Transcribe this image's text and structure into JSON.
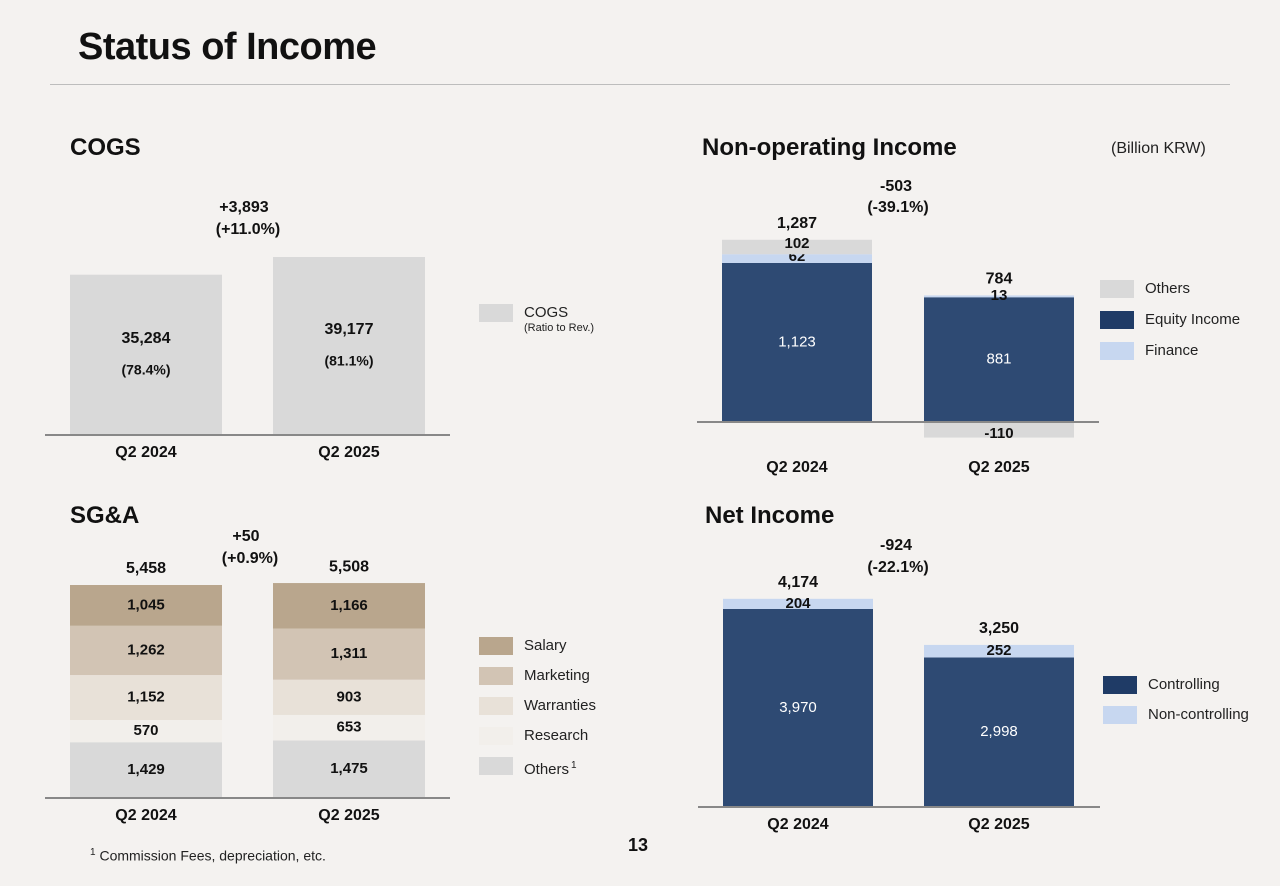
{
  "page": {
    "title": "Status of Income",
    "unit_note": "(Billion KRW)",
    "footnote_marker": "1",
    "footnote": "Commission Fees, depreciation, etc.",
    "page_number": "13"
  },
  "colors": {
    "background": "#f4f2f0",
    "cogs": "#d9d9d9",
    "navy": "#2e4a73",
    "legend_navy": "#1f3b66",
    "finance": "#c7d7f0",
    "others_gray": "#d9d9d9",
    "salary": "#b9a68d",
    "marketing": "#d2c4b4",
    "warranties": "#e8e1d8",
    "research": "#f2efeb",
    "sga_others": "#d9d9d9"
  },
  "chart_data": [
    {
      "id": "cogs",
      "type": "bar",
      "title": "COGS",
      "categories": [
        "Q2 2024",
        "Q2 2025"
      ],
      "series": [
        {
          "name": "COGS",
          "sublabel": "(Ratio to Rev.)",
          "values": [
            35284,
            39177
          ],
          "ratios": [
            "(78.4%)",
            "(81.1%)"
          ],
          "labels": [
            "35,284",
            "39,177"
          ]
        }
      ],
      "change": {
        "value": "+3,893",
        "pct": "(+11.0%)"
      },
      "ylim": [
        0,
        45000
      ]
    },
    {
      "id": "nonop",
      "type": "bar",
      "stacked": true,
      "title": "Non-operating Income",
      "categories": [
        "Q2 2024",
        "Q2 2025"
      ],
      "series": [
        {
          "name": "Equity Income",
          "values": [
            1123,
            881
          ],
          "labels": [
            "1,123",
            "881"
          ]
        },
        {
          "name": "Finance",
          "values": [
            62,
            13
          ],
          "labels": [
            "62",
            "13"
          ]
        },
        {
          "name": "Others",
          "values": [
            102,
            -110
          ],
          "labels": [
            "102",
            "-110"
          ]
        }
      ],
      "totals": [
        "1,287",
        "784"
      ],
      "change": {
        "value": "-503",
        "pct": "(-39.1%)"
      },
      "legend": [
        "Others",
        "Equity Income",
        "Finance"
      ],
      "ylim": [
        -150,
        1500
      ]
    },
    {
      "id": "sga",
      "type": "bar",
      "stacked": true,
      "title": "SG&A",
      "categories": [
        "Q2 2024",
        "Q2 2025"
      ],
      "series": [
        {
          "name": "Others",
          "values": [
            1429,
            1475
          ],
          "labels": [
            "1,429",
            "1,475"
          ]
        },
        {
          "name": "Research",
          "values": [
            570,
            653
          ],
          "labels": [
            "570",
            "653"
          ]
        },
        {
          "name": "Warranties",
          "values": [
            1152,
            903
          ],
          "labels": [
            "1,152",
            "903"
          ]
        },
        {
          "name": "Marketing",
          "values": [
            1262,
            1311
          ],
          "labels": [
            "1,262",
            "1,311"
          ]
        },
        {
          "name": "Salary",
          "values": [
            1045,
            1166
          ],
          "labels": [
            "1,045",
            "1,166"
          ]
        }
      ],
      "totals": [
        "5,458",
        "5,508"
      ],
      "change": {
        "value": "+50",
        "pct": "(+0.9%)"
      },
      "legend": [
        "Salary",
        "Marketing",
        "Warranties",
        "Research",
        "Others"
      ],
      "ylim": [
        0,
        6000
      ]
    },
    {
      "id": "net",
      "type": "bar",
      "stacked": true,
      "title": "Net Income",
      "categories": [
        "Q2 2024",
        "Q2 2025"
      ],
      "series": [
        {
          "name": "Controlling",
          "values": [
            3970,
            2998
          ],
          "labels": [
            "3,970",
            "2,998"
          ]
        },
        {
          "name": "Non-controlling",
          "values": [
            204,
            252
          ],
          "labels": [
            "204",
            "252"
          ]
        }
      ],
      "totals": [
        "4,174",
        "3,250"
      ],
      "change": {
        "value": "-924",
        "pct": "(-22.1%)"
      },
      "legend": [
        "Controlling",
        "Non-controlling"
      ],
      "ylim": [
        0,
        4500
      ]
    }
  ]
}
